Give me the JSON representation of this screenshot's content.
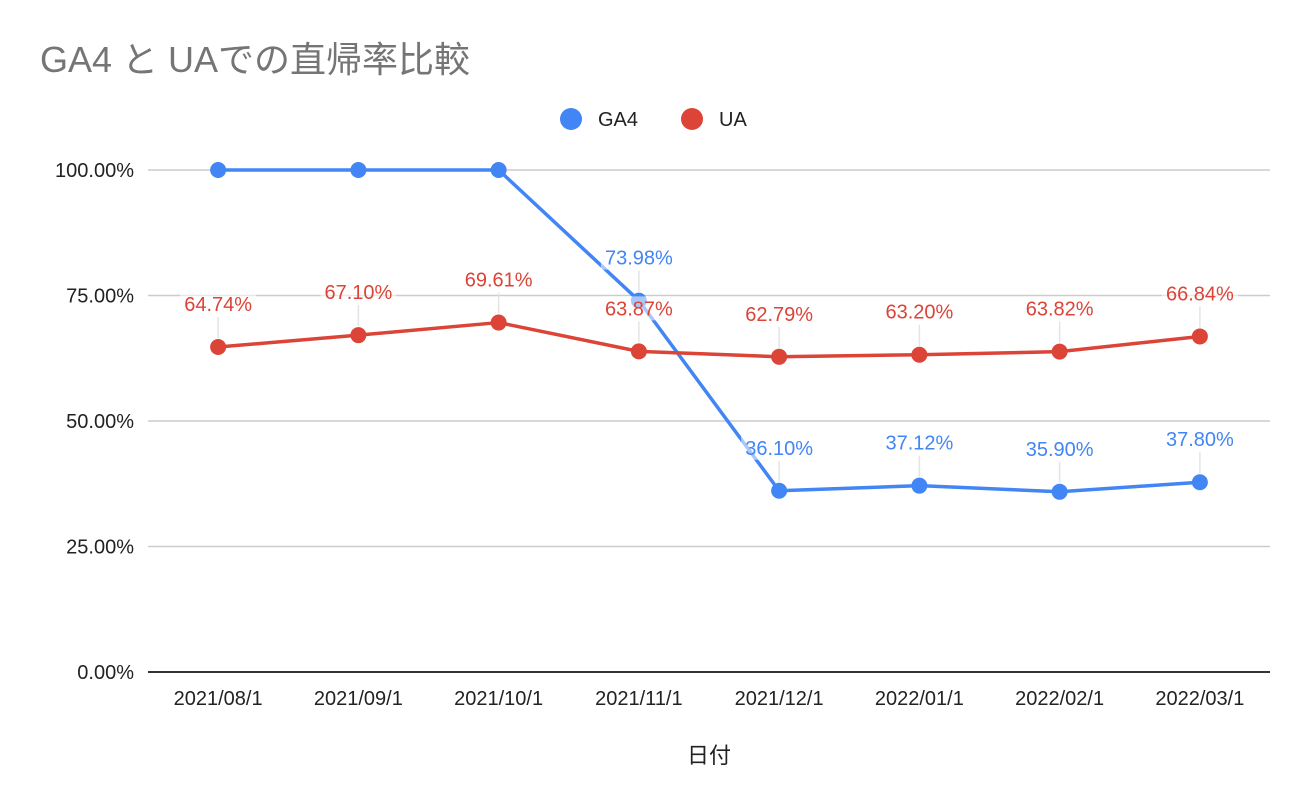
{
  "chart_data": {
    "type": "line",
    "title": "GA4 と UAでの直帰率比較",
    "xlabel": "日付",
    "ylabel": "",
    "ylim": [
      0,
      100
    ],
    "yticks": [
      "0.00%",
      "25.00%",
      "50.00%",
      "75.00%",
      "100.00%"
    ],
    "ytick_values": [
      0,
      25,
      50,
      75,
      100
    ],
    "categories": [
      "2021/08/1",
      "2021/09/1",
      "2021/10/1",
      "2021/11/1",
      "2021/12/1",
      "2022/01/1",
      "2022/02/1",
      "2022/03/1"
    ],
    "legend_position": "top",
    "grid": true,
    "series": [
      {
        "name": "GA4",
        "color": "#4285F4",
        "values": [
          100,
          100,
          100,
          73.98,
          36.1,
          37.12,
          35.9,
          37.8
        ],
        "labels": [
          "",
          "",
          "",
          "73.98%",
          "36.10%",
          "37.12%",
          "35.90%",
          "37.80%"
        ]
      },
      {
        "name": "UA",
        "color": "#DB4437",
        "values": [
          64.74,
          67.1,
          69.61,
          63.87,
          62.79,
          63.2,
          63.82,
          66.84
        ],
        "labels": [
          "64.74%",
          "67.10%",
          "69.61%",
          "63.87%",
          "62.79%",
          "63.20%",
          "63.82%",
          "66.84%"
        ]
      }
    ]
  }
}
